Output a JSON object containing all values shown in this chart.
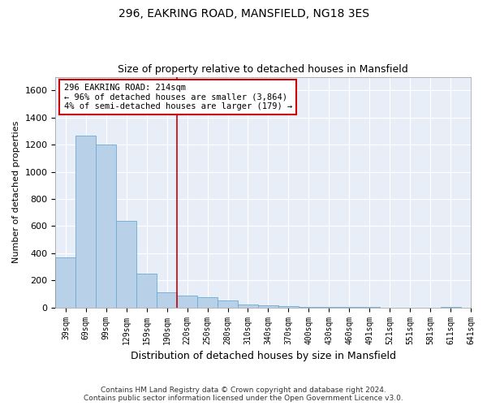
{
  "title1": "296, EAKRING ROAD, MANSFIELD, NG18 3ES",
  "title2": "Size of property relative to detached houses in Mansfield",
  "xlabel": "Distribution of detached houses by size in Mansfield",
  "ylabel": "Number of detached properties",
  "footer1": "Contains HM Land Registry data © Crown copyright and database right 2024.",
  "footer2": "Contains public sector information licensed under the Open Government Licence v3.0.",
  "annotation_title": "296 EAKRING ROAD: 214sqm",
  "annotation_line1": "← 96% of detached houses are smaller (3,864)",
  "annotation_line2": "4% of semi-detached houses are larger (179) →",
  "bar_color": "#b8d0e8",
  "bar_edge_color": "#6aaad4",
  "vline_color": "#cc0000",
  "annotation_box_color": "#cc0000",
  "background_color": "#e8eef8",
  "ylim": [
    0,
    1700
  ],
  "yticks": [
    0,
    200,
    400,
    600,
    800,
    1000,
    1200,
    1400,
    1600
  ],
  "counts": [
    370,
    1265,
    1200,
    640,
    250,
    110,
    90,
    75,
    50,
    20,
    15,
    10,
    5,
    5,
    5,
    5,
    0,
    0,
    0,
    5
  ],
  "tick_labels": [
    "39sqm",
    "69sqm",
    "99sqm",
    "129sqm",
    "159sqm",
    "190sqm",
    "220sqm",
    "250sqm",
    "280sqm",
    "310sqm",
    "340sqm",
    "370sqm",
    "400sqm",
    "430sqm",
    "460sqm",
    "491sqm",
    "521sqm",
    "551sqm",
    "581sqm",
    "611sqm",
    "641sqm"
  ],
  "vline_bar_index": 6,
  "grid_color": "#c8d8ec",
  "title_fontsize": 10,
  "subtitle_fontsize": 9,
  "ylabel_fontsize": 8,
  "xlabel_fontsize": 9,
  "tick_fontsize": 7,
  "annotation_fontsize": 7.5,
  "footer_fontsize": 6.5
}
